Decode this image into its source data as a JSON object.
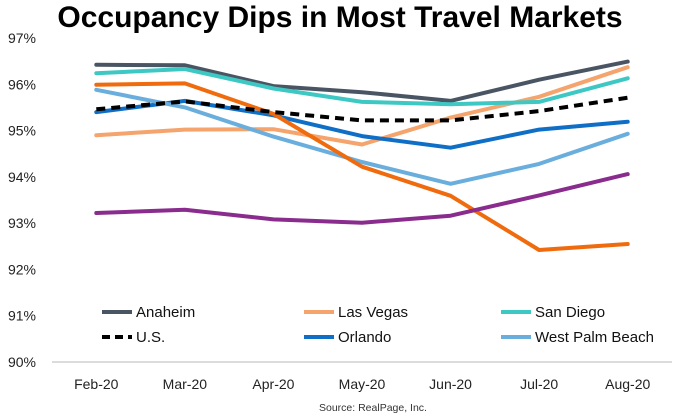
{
  "chart_data": {
    "type": "line",
    "title": "Occupancy Dips in Most Travel Markets",
    "source": "Source: RealPage, Inc.",
    "categories": [
      "Feb-20",
      "Mar-20",
      "Apr-20",
      "May-20",
      "Jun-20",
      "Jul-20",
      "Aug-20"
    ],
    "ylim": [
      90,
      97
    ],
    "yticks": [
      90,
      91,
      92,
      93,
      94,
      95,
      96,
      97
    ],
    "ytick_labels": [
      "90%",
      "91%",
      "92%",
      "93%",
      "94%",
      "95%",
      "96%",
      "97%"
    ],
    "grid": false,
    "legend_position": "bottom, inside plot",
    "series": [
      {
        "name": "Anaheim",
        "color": "#4a5563",
        "dash": false,
        "values": [
          96.42,
          96.41,
          95.96,
          95.83,
          95.64,
          96.1,
          96.49
        ]
      },
      {
        "name": "Las Vegas",
        "color": "#f4a46c",
        "dash": false,
        "values": [
          94.9,
          95.02,
          95.03,
          94.7,
          95.28,
          95.73,
          96.37
        ]
      },
      {
        "name": "San Diego",
        "color": "#3ec8c4",
        "dash": false,
        "values": [
          96.24,
          96.33,
          95.91,
          95.62,
          95.57,
          95.62,
          96.13
        ]
      },
      {
        "name": "U.S.",
        "color": "#000000",
        "dash": true,
        "values": [
          95.46,
          95.63,
          95.4,
          95.22,
          95.22,
          95.42,
          95.71
        ]
      },
      {
        "name": "Orlando",
        "color": "#0f6fc6",
        "dash": false,
        "values": [
          95.4,
          95.64,
          95.33,
          94.88,
          94.63,
          95.02,
          95.19
        ]
      },
      {
        "name": "West Palm Beach",
        "color": "#6aaede",
        "dash": false,
        "values": [
          95.88,
          95.5,
          94.87,
          94.32,
          93.85,
          94.28,
          94.93
        ]
      },
      {
        "name": "",
        "color": "#ef6b0e",
        "dash": false,
        "values": [
          95.99,
          96.02,
          95.36,
          94.22,
          93.59,
          92.42,
          92.55
        ]
      },
      {
        "name": "",
        "color": "#8a2b8e",
        "dash": false,
        "values": [
          93.22,
          93.29,
          93.08,
          93.01,
          93.16,
          93.6,
          94.06
        ]
      }
    ],
    "legend": [
      {
        "label": "Anaheim",
        "color": "#4a5563",
        "dash": false
      },
      {
        "label": "Las Vegas",
        "color": "#f4a46c",
        "dash": false
      },
      {
        "label": "San Diego",
        "color": "#3ec8c4",
        "dash": false
      },
      {
        "label": "U.S.",
        "color": "#000000",
        "dash": true
      },
      {
        "label": "Orlando",
        "color": "#0f6fc6",
        "dash": false
      },
      {
        "label": "West Palm Beach",
        "color": "#6aaede",
        "dash": false
      }
    ]
  }
}
